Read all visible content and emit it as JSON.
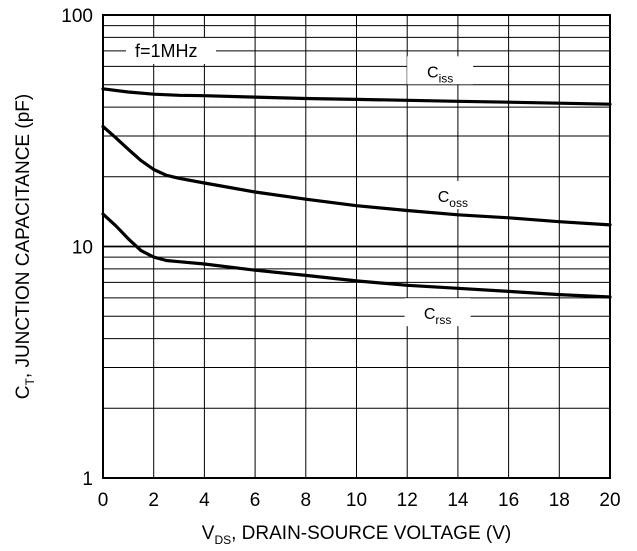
{
  "chart_data": {
    "type": "line",
    "xlabel": {
      "main": "V",
      "sub": "DS",
      "rest": ", DRAIN-SOURCE VOLTAGE (V)"
    },
    "ylabel": {
      "main": "C",
      "sub": "T",
      "rest": ", JUNCTION CAPACITANCE (pF)"
    },
    "xlim": [
      0,
      20
    ],
    "ylim": [
      1,
      100
    ],
    "yscale": "log",
    "grid": true,
    "x_ticks": [
      "0",
      "2",
      "4",
      "6",
      "8",
      "10",
      "12",
      "14",
      "16",
      "18",
      "20"
    ],
    "y_ticks": [
      "1",
      "10",
      "100"
    ],
    "annotation": "f=1MHz",
    "series": [
      {
        "name": "Ciss",
        "label_main": "C",
        "label_sub": "iss",
        "points": [
          [
            0,
            48
          ],
          [
            1,
            46.5
          ],
          [
            2,
            45.5
          ],
          [
            3,
            45
          ],
          [
            4,
            44.8
          ],
          [
            6,
            44.2
          ],
          [
            8,
            43.6
          ],
          [
            10,
            43.2
          ],
          [
            12,
            42.8
          ],
          [
            14,
            42.4
          ],
          [
            16,
            42
          ],
          [
            18,
            41.6
          ],
          [
            20,
            41.2
          ]
        ]
      },
      {
        "name": "Coss",
        "label_main": "C",
        "label_sub": "oss",
        "points": [
          [
            0,
            33
          ],
          [
            0.5,
            29.5
          ],
          [
            1,
            26.3
          ],
          [
            1.5,
            23.5
          ],
          [
            2,
            21.5
          ],
          [
            2.5,
            20.3
          ],
          [
            3,
            19.7
          ],
          [
            4,
            18.8
          ],
          [
            6,
            17.2
          ],
          [
            8,
            16
          ],
          [
            10,
            15
          ],
          [
            12,
            14.3
          ],
          [
            14,
            13.7
          ],
          [
            16,
            13.3
          ],
          [
            18,
            12.8
          ],
          [
            20,
            12.4
          ]
        ]
      },
      {
        "name": "Crss",
        "label_main": "C",
        "label_sub": "rss",
        "points": [
          [
            0,
            13.8
          ],
          [
            0.5,
            12.3
          ],
          [
            1,
            10.8
          ],
          [
            1.5,
            9.6
          ],
          [
            2,
            9
          ],
          [
            2.5,
            8.7
          ],
          [
            3,
            8.6
          ],
          [
            4,
            8.4
          ],
          [
            6,
            7.9
          ],
          [
            8,
            7.5
          ],
          [
            10,
            7.1
          ],
          [
            12,
            6.8
          ],
          [
            14,
            6.6
          ],
          [
            16,
            6.4
          ],
          [
            18,
            6.2
          ],
          [
            20,
            6.05
          ]
        ]
      }
    ]
  }
}
